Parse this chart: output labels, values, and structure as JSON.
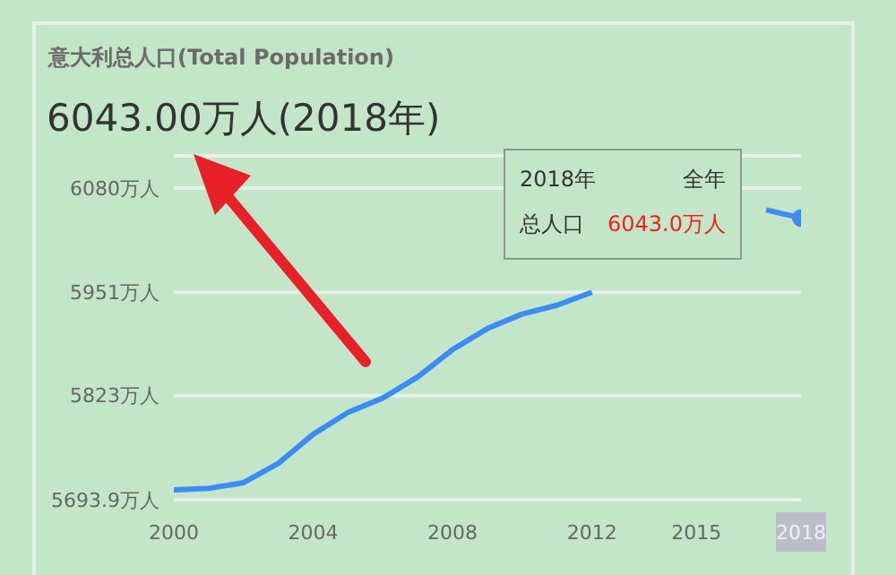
{
  "chart_data": {
    "type": "line",
    "title": "意大利总人口(Total Population)",
    "subtitle": "6043.00万人(2018年)",
    "x": [
      2000,
      2001,
      2002,
      2003,
      2004,
      2005,
      2006,
      2007,
      2008,
      2009,
      2010,
      2011,
      2012,
      2013,
      2014,
      2015,
      2016,
      2017,
      2018
    ],
    "series": [
      {
        "color": "#3d8bf5",
        "values": [
          5706,
          5708,
          5715,
          5739,
          5775,
          5802,
          5820,
          5846,
          5880,
          5906,
          5924,
          5935,
          5951,
          null,
          null,
          null,
          null,
          6053,
          6043
        ]
      }
    ],
    "xlim": [
      2000,
      2018
    ],
    "xticks": [
      2000,
      2004,
      2008,
      2012,
      2015,
      2018
    ],
    "ylim": [
      5693.9,
      6120
    ],
    "yticks": [
      {
        "value": 5693.9,
        "label": "5693.9万人"
      },
      {
        "value": 5823,
        "label": "5823万人"
      },
      {
        "value": 5951,
        "label": "5951万人"
      },
      {
        "value": 6080,
        "label": "6080万人"
      }
    ],
    "grid": "y",
    "marker": "none",
    "line_style": "solid",
    "annotations": [
      "2018年",
      "全年",
      "总人口",
      "6043.0万人"
    ]
  }
}
